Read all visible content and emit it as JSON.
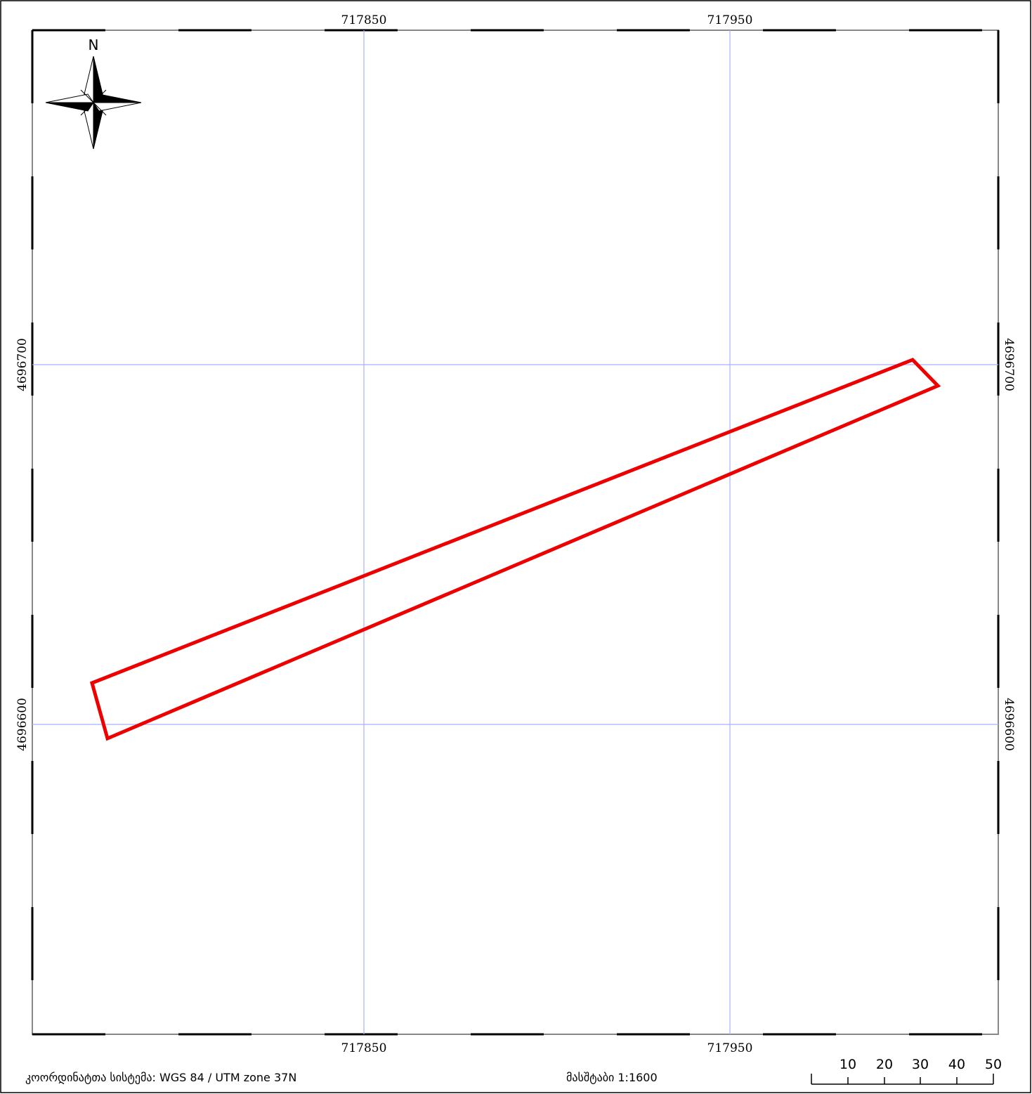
{
  "map": {
    "north_label": "N",
    "grid": {
      "easting_labels": [
        "717850",
        "717950"
      ],
      "northing_labels": [
        "4696700",
        "4696600"
      ]
    },
    "parcel": {
      "outline_color": "#ee0000",
      "fill": "none"
    },
    "grid_color": "#aab0ff",
    "frame_color": "#000000"
  },
  "footer": {
    "coordinate_system": "კოორდინატთა სისტემა: WGS 84 / UTM zone 37N",
    "scale_text": "მასშტაბი 1:1600"
  },
  "scale_bar": {
    "tick_labels": [
      "10",
      "20",
      "30",
      "40",
      "50"
    ]
  }
}
